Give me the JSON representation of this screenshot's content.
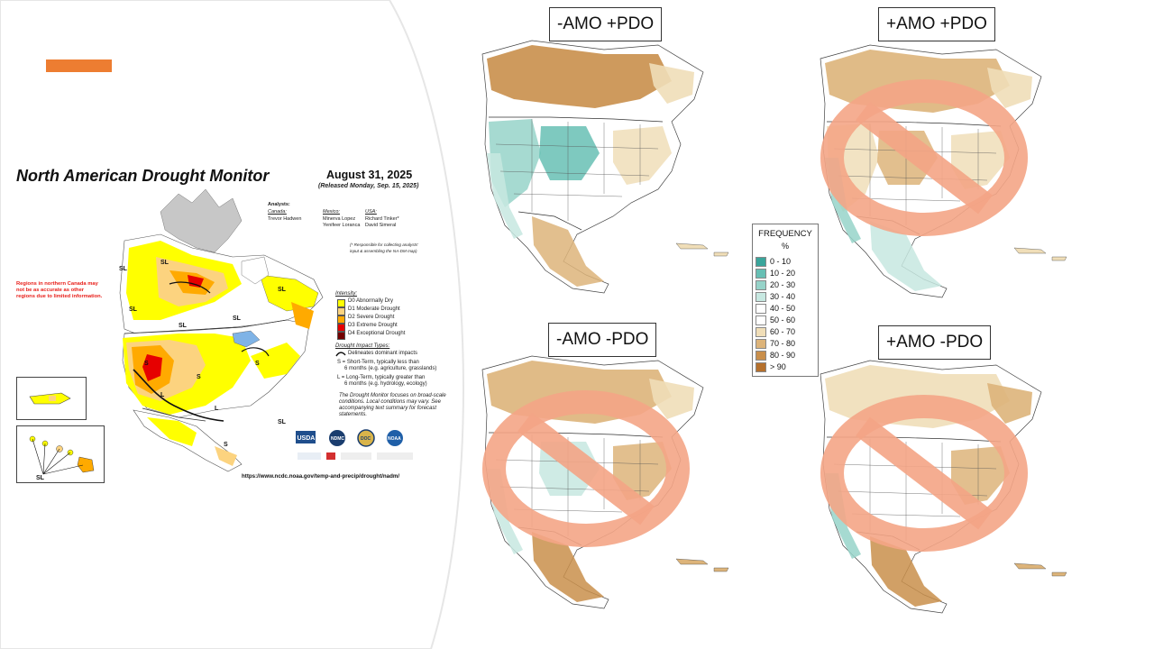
{
  "colors": {
    "accent": "#ed7d31",
    "prohibition": "#f4a586"
  },
  "drought_monitor": {
    "title": "North American Drought Monitor",
    "date": "August 31, 2025",
    "released": "(Released Monday, Sep. 15, 2025)",
    "analysts_heading": "Analysts:",
    "canada_label": "Canada:",
    "canada_analyst": "Trevor Hadwen",
    "mexico_label": "Mexico:",
    "mexico_analysts": [
      "Minerva Lopez",
      "Yenifeer Loranca"
    ],
    "usa_label": "USA:",
    "usa_analysts": [
      "Richard Tinker*",
      "David Simeral"
    ],
    "responsible_note": [
      "(* Responsible for collecting analysts'",
      "input & assembling the NA-DM map)"
    ],
    "northern_canada_note": "Regions in northern Canada may not be as accurate as other regions due to limited information.",
    "intensity_title": "Intensity:",
    "intensity": [
      {
        "label": "D0 Abnormally Dry",
        "color": "#ffff00"
      },
      {
        "label": "D1 Moderate Drought",
        "color": "#fcd37f"
      },
      {
        "label": "D2 Severe Drought",
        "color": "#ffaa00"
      },
      {
        "label": "D3 Extreme Drought",
        "color": "#e60000"
      },
      {
        "label": "D4 Exceptional Drought",
        "color": "#730000"
      }
    ],
    "impact_title": "Drought Impact Types:",
    "impact_items": [
      "Delineates dominant impacts",
      "S = Short-Term, typically less than",
      "6 months (e.g. agriculture, grasslands)",
      "L = Long-Term, typically greater than",
      "6 months (e.g. hydrology, ecology)"
    ],
    "focus_note": [
      "The Drought Monitor focuses on broad-scale",
      "conditions. Local conditions may vary. See",
      "accompanying text summary for forecast",
      "statements."
    ],
    "map_codes": [
      "SL",
      "SL",
      "SL",
      "SL",
      "SL",
      "SL",
      "S",
      "S",
      "S",
      "S",
      "L",
      "L",
      "SL"
    ],
    "url": "https://www.ncdc.noaa.gov/temp-and-precip/drought/nadm/",
    "agency_logos": [
      "USDA",
      "NDMC",
      "DOC",
      "NOAA"
    ]
  },
  "composites": [
    {
      "label": "-AMO +PDO",
      "crossed_out": false
    },
    {
      "label": "+AMO +PDO",
      "crossed_out": true
    },
    {
      "label": "-AMO -PDO",
      "crossed_out": true
    },
    {
      "label": "+AMO -PDO",
      "crossed_out": true
    }
  ],
  "frequency_legend": {
    "title": "FREQUENCY",
    "unit": "%",
    "bins": [
      {
        "label": "0 - 10",
        "color": "#3aa59b"
      },
      {
        "label": "10 - 20",
        "color": "#67bfb4"
      },
      {
        "label": "20 - 30",
        "color": "#96d3c9"
      },
      {
        "label": "30 - 40",
        "color": "#c7e8e1"
      },
      {
        "label": "40 - 50",
        "color": "#ffffff"
      },
      {
        "label": "50 - 60",
        "color": "#ffffff"
      },
      {
        "label": "60 - 70",
        "color": "#f0deb8"
      },
      {
        "label": "70 - 80",
        "color": "#ddb47a"
      },
      {
        "label": "80 - 90",
        "color": "#c98f4b"
      },
      {
        "label": "> 90",
        "color": "#b5702c"
      }
    ]
  }
}
